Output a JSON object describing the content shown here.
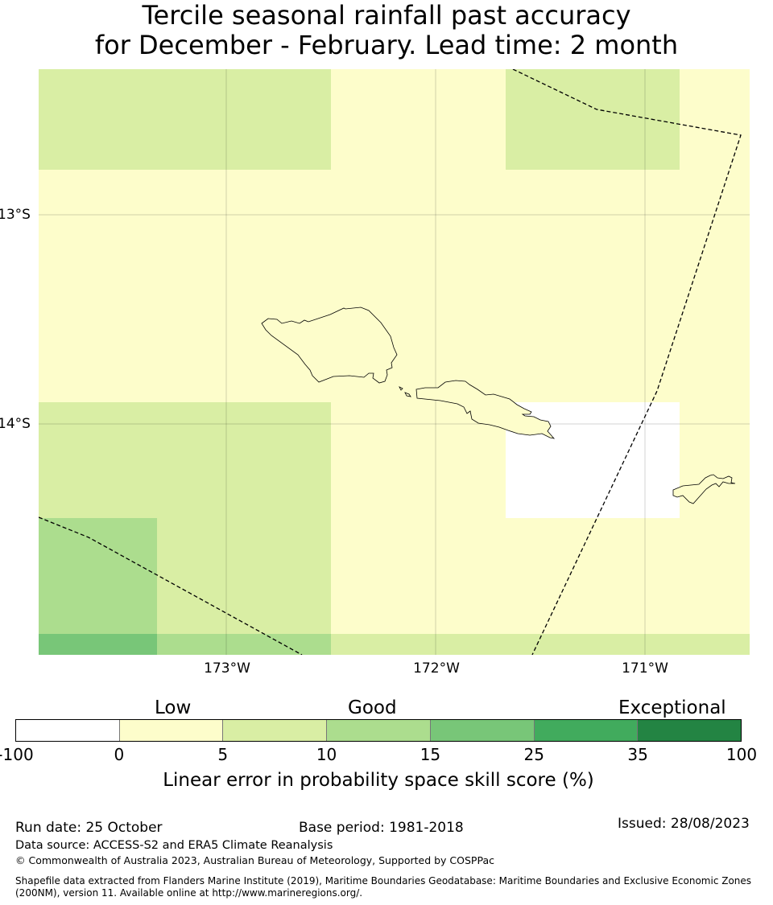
{
  "title": {
    "line1": "Tercile seasonal rainfall past accuracy",
    "line2": "for December - February. Lead time: 2 month"
  },
  "map": {
    "lat_labels": [
      "13°S",
      "14°S"
    ],
    "lon_labels": [
      "173°W",
      "172°W",
      "171°W"
    ],
    "colors": {
      "low": "#fdfdcb",
      "light_green": "#d9eea4",
      "mid_green": "#acdd8e",
      "green": "#78c678",
      "no_skill": "#ffffff",
      "boundary_line": "#000000",
      "coastline": "#000000"
    }
  },
  "colorbar": {
    "categories": [
      "Low",
      "Good",
      "Exceptional"
    ],
    "ticks": [
      "-100",
      "0",
      "5",
      "10",
      "15",
      "25",
      "35",
      "100"
    ],
    "colors": [
      "#ffffff",
      "#fdfdcb",
      "#d9eea4",
      "#acdd8e",
      "#78c678",
      "#41ab5d",
      "#238443"
    ],
    "label": "Linear error in probability space skill score (%)"
  },
  "footer": {
    "run_date": "Run date: 25 October",
    "base_period": "Base period: 1981-2018",
    "issued": "Issued: 28/08/2023",
    "data_source": "Data source: ACCESS-S2 and ERA5 Climate Reanalysis",
    "copyright": "© Commonwealth of Australia 2023, Australian Bureau of Meteorology, Supported by COSPPac",
    "shapefile_line1": "Shapefile data extracted from Flanders Marine Institute (2019), Maritime Boundaries Geodatabase: Maritime Boundaries and Exclusive Economic Zones",
    "shapefile_line2": "(200NM), version 11. Available online at http://www.marineregions.org/."
  }
}
